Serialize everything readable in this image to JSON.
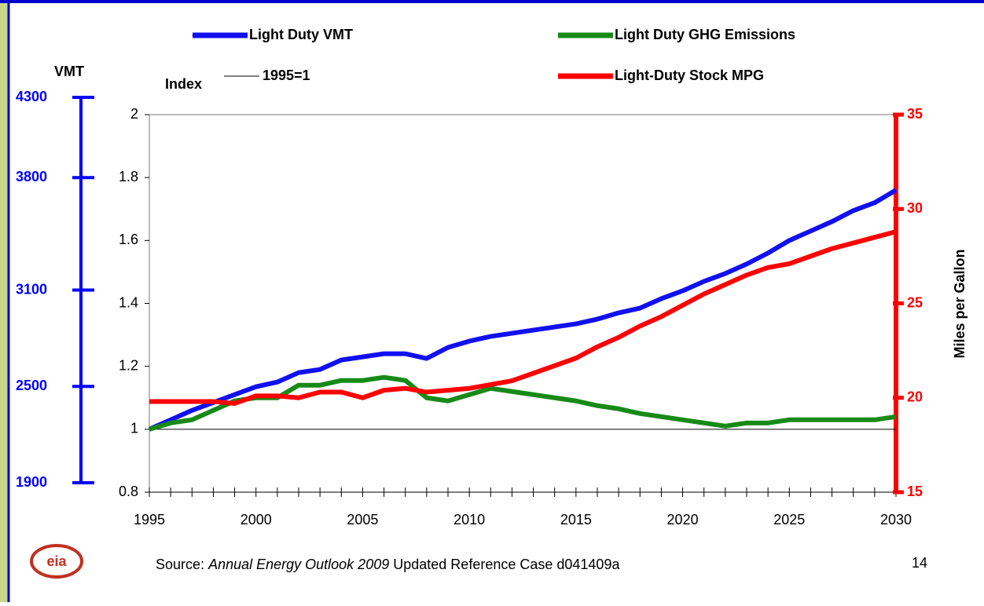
{
  "chart_data": {
    "type": "line",
    "x": [
      1995,
      1996,
      1997,
      1998,
      1999,
      2000,
      2001,
      2002,
      2003,
      2004,
      2005,
      2006,
      2007,
      2008,
      2009,
      2010,
      2011,
      2012,
      2013,
      2014,
      2015,
      2016,
      2017,
      2018,
      2019,
      2020,
      2021,
      2022,
      2023,
      2024,
      2025,
      2026,
      2027,
      2028,
      2029,
      2030
    ],
    "xlim": [
      1995,
      2030
    ],
    "xticks": [
      1995,
      2000,
      2005,
      2010,
      2015,
      2020,
      2025,
      2030
    ],
    "ylabel": "Index",
    "ylim": [
      0.8,
      2
    ],
    "yticks": [
      0.8,
      1,
      1.2,
      1.4,
      1.6,
      1.8,
      2
    ],
    "y2label": "Miles per Gallon",
    "y2lim": [
      15,
      35
    ],
    "y2ticks": [
      15,
      20,
      25,
      30,
      35
    ],
    "y2color": "#ff0000",
    "vmt_axis": {
      "label": "VMT",
      "color": "#0000ff",
      "ylim": [
        1900,
        4300
      ],
      "yticks": [
        1900,
        2500,
        3100,
        3800,
        4300
      ]
    },
    "reference_line": {
      "label": "1995=1",
      "value": 1,
      "color": "#000000"
    },
    "series": [
      {
        "name": "Light Duty VMT",
        "color": "#1010f0",
        "values": [
          1.0,
          1.03,
          1.06,
          1.085,
          1.11,
          1.135,
          1.15,
          1.18,
          1.19,
          1.22,
          1.23,
          1.24,
          1.24,
          1.225,
          1.26,
          1.28,
          1.295,
          1.305,
          1.315,
          1.325,
          1.335,
          1.35,
          1.37,
          1.385,
          1.415,
          1.44,
          1.47,
          1.495,
          1.525,
          1.56,
          1.6,
          1.63,
          1.66,
          1.695,
          1.72,
          1.76
        ]
      },
      {
        "name": "Light Duty GHG Emissions",
        "color": "#178a17",
        "values": [
          1.0,
          1.02,
          1.03,
          1.06,
          1.09,
          1.1,
          1.1,
          1.14,
          1.14,
          1.155,
          1.155,
          1.165,
          1.155,
          1.1,
          1.09,
          1.11,
          1.13,
          1.12,
          1.11,
          1.1,
          1.09,
          1.075,
          1.065,
          1.05,
          1.04,
          1.03,
          1.02,
          1.01,
          1.02,
          1.02,
          1.03,
          1.03,
          1.03,
          1.03,
          1.03,
          1.04
        ]
      },
      {
        "name": "Light-Duty Stock MPG",
        "color": "#ff0000",
        "axis": "y2",
        "values": [
          19.8,
          19.8,
          19.8,
          19.8,
          19.7,
          20.1,
          20.1,
          20.0,
          20.3,
          20.3,
          20.0,
          20.4,
          20.5,
          20.3,
          20.4,
          20.5,
          20.7,
          20.9,
          21.3,
          21.7,
          22.1,
          22.7,
          23.2,
          23.8,
          24.3,
          24.9,
          25.5,
          26.0,
          26.5,
          26.9,
          27.1,
          27.5,
          27.9,
          28.2,
          28.5,
          28.8
        ]
      }
    ],
    "source_prefix": "Source:",
    "source_title": "Annual Energy Outlook 2009",
    "source_suffix": "Updated Reference Case d041409a",
    "page_number": "14",
    "logo": "eia"
  }
}
